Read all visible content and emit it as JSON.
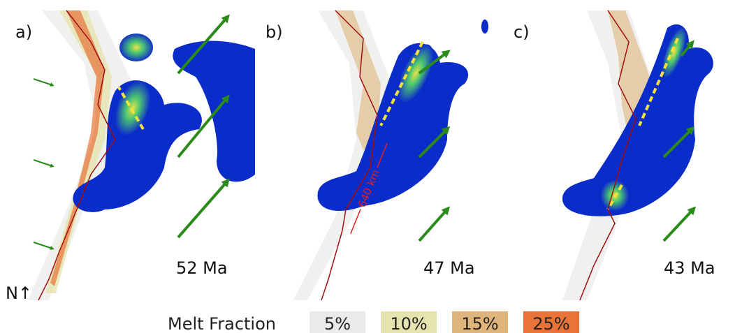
{
  "panels": [
    {
      "label": "a)",
      "age": "52 Ma"
    },
    {
      "label": "b)",
      "age": "47 Ma",
      "distance": "640 km"
    },
    {
      "label": "c)",
      "age": "43 Ma"
    }
  ],
  "north": "N↑",
  "legend": {
    "title": "Melt Fraction",
    "items": [
      {
        "label": "5%",
        "color": "#ebebe9"
      },
      {
        "label": "10%",
        "color": "#e6e4ae"
      },
      {
        "label": "15%",
        "color": "#dfb57c"
      },
      {
        "label": "25%",
        "color": "#e8743a"
      }
    ]
  }
}
